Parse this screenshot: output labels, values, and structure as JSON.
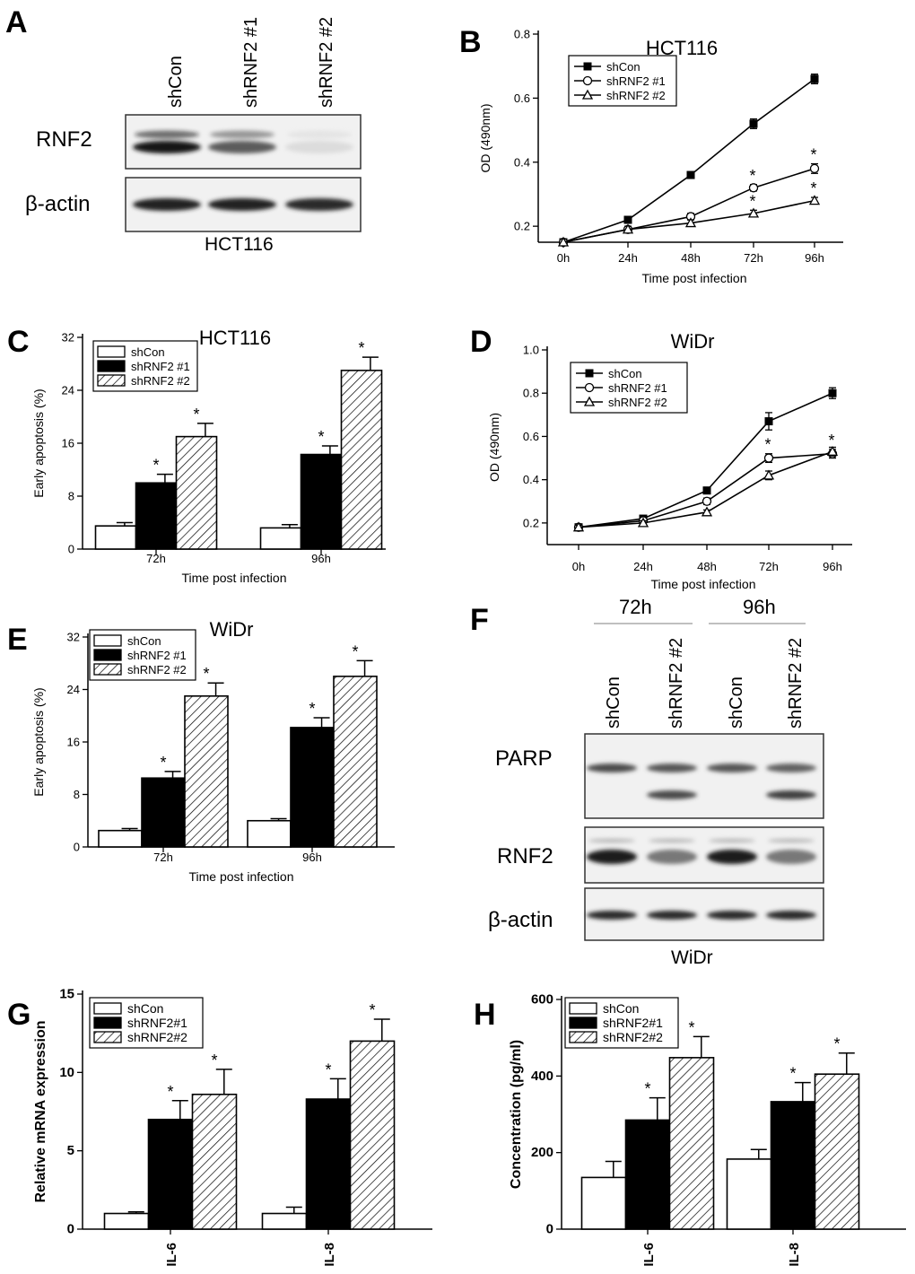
{
  "panels": {
    "A": {
      "label": "A",
      "lanes": [
        "shCon",
        "shRNF2 #1",
        "shRNF2 #2"
      ],
      "blots": [
        {
          "name": "RNF2",
          "intensity": [
            1.0,
            0.7,
            0.15
          ],
          "double": true
        },
        {
          "name": "β-actin",
          "intensity": [
            0.95,
            0.95,
            0.9
          ],
          "double": false
        }
      ],
      "caption": "HCT116"
    },
    "F": {
      "label": "F",
      "groups": [
        "72h",
        "96h"
      ],
      "lanes": [
        "shCon",
        "shRNF2 #2",
        "shCon",
        "shRNF2 #2"
      ],
      "blots": [
        {
          "name": "PARP",
          "intensity": [
            0.8,
            0.75,
            0.75,
            0.7
          ],
          "cleaved": [
            0,
            0.8,
            0,
            0.85
          ]
        },
        {
          "name": "RNF2",
          "intensity": [
            1.0,
            0.6,
            1.0,
            0.6
          ],
          "cleaved": [
            0,
            0,
            0,
            0
          ]
        },
        {
          "name": "β-actin",
          "intensity": [
            0.95,
            0.95,
            0.95,
            0.95
          ],
          "cleaved": [
            0,
            0,
            0,
            0
          ]
        }
      ],
      "caption": "WiDr"
    }
  },
  "chart_data": [
    {
      "id": "B",
      "panel_label": "B",
      "type": "line",
      "title": "HCT116",
      "xlabel": "Time post infection",
      "ylabel": "OD (490nm)",
      "x": [
        "0h",
        "24h",
        "48h",
        "72h",
        "96h"
      ],
      "ylim": [
        0.15,
        0.8
      ],
      "yticks": [
        0.2,
        0.4,
        0.6,
        0.8
      ],
      "ytick_labels": [
        "0.2",
        "0.4",
        "0.6",
        "0.8"
      ],
      "series": [
        {
          "name": "shCon",
          "marker": "square",
          "values": [
            0.15,
            0.22,
            0.36,
            0.52,
            0.66
          ],
          "err": [
            0.01,
            0.01,
            0.01,
            0.015,
            0.015
          ],
          "sig": [
            false,
            false,
            false,
            false,
            false
          ]
        },
        {
          "name": "shRNF2 #1",
          "marker": "circle",
          "values": [
            0.15,
            0.19,
            0.23,
            0.32,
            0.38
          ],
          "err": [
            0.01,
            0.01,
            0.01,
            0.01,
            0.015
          ],
          "sig": [
            false,
            false,
            false,
            true,
            true
          ]
        },
        {
          "name": "shRNF2 #2",
          "marker": "triangle",
          "values": [
            0.15,
            0.19,
            0.21,
            0.24,
            0.28
          ],
          "err": [
            0.01,
            0.01,
            0.01,
            0.01,
            0.01
          ],
          "sig": [
            false,
            false,
            false,
            true,
            true
          ]
        }
      ],
      "legend": "top-left"
    },
    {
      "id": "C",
      "panel_label": "C",
      "type": "bar",
      "title": "HCT116",
      "xlabel": "Time post infection",
      "ylabel": "Early apoptosis (%)",
      "categories": [
        "72h",
        "96h"
      ],
      "ylim": [
        0,
        32
      ],
      "yticks": [
        0,
        8,
        16,
        24,
        32
      ],
      "ytick_labels": [
        "0",
        "8",
        "16",
        "24",
        "32"
      ],
      "series": [
        {
          "name": "shCon",
          "fill": "white",
          "values": [
            3.5,
            3.2
          ],
          "err": [
            0.5,
            0.5
          ],
          "sig": [
            false,
            false
          ]
        },
        {
          "name": "shRNF2 #1",
          "fill": "black",
          "values": [
            10,
            14.3
          ],
          "err": [
            1.3,
            1.3
          ],
          "sig": [
            true,
            true
          ]
        },
        {
          "name": "shRNF2 #2",
          "fill": "hatch",
          "values": [
            17,
            27
          ],
          "err": [
            2,
            2
          ],
          "sig": [
            true,
            true
          ]
        }
      ],
      "legend": "top-left"
    },
    {
      "id": "D",
      "panel_label": "D",
      "type": "line",
      "title": "WiDr",
      "xlabel": "Time post infection",
      "ylabel": "OD (490nm)",
      "x": [
        "0h",
        "24h",
        "48h",
        "72h",
        "96h"
      ],
      "ylim": [
        0.1,
        1.0
      ],
      "yticks": [
        0.2,
        0.4,
        0.6,
        0.8,
        1.0
      ],
      "ytick_labels": [
        "0.2",
        "0.4",
        "0.6",
        "0.8",
        "1.0"
      ],
      "series": [
        {
          "name": "shCon",
          "marker": "square",
          "values": [
            0.18,
            0.22,
            0.35,
            0.67,
            0.8
          ],
          "err": [
            0.01,
            0.01,
            0.015,
            0.04,
            0.025
          ],
          "sig": [
            false,
            false,
            false,
            false,
            false
          ]
        },
        {
          "name": "shRNF2 #1",
          "marker": "circle",
          "values": [
            0.18,
            0.21,
            0.3,
            0.5,
            0.52
          ],
          "err": [
            0.01,
            0.01,
            0.015,
            0.02,
            0.02
          ],
          "sig": [
            false,
            false,
            false,
            true,
            true
          ]
        },
        {
          "name": "shRNF2 #2",
          "marker": "triangle",
          "values": [
            0.18,
            0.2,
            0.25,
            0.42,
            0.53
          ],
          "err": [
            0.01,
            0.01,
            0.01,
            0.02,
            0.02
          ],
          "sig": [
            false,
            false,
            false,
            false,
            false
          ]
        }
      ],
      "legend": "top-left"
    },
    {
      "id": "E",
      "panel_label": "E",
      "type": "bar",
      "title": "WiDr",
      "xlabel": "Time post infection",
      "ylabel": "Early apoptosis (%)",
      "categories": [
        "72h",
        "96h"
      ],
      "ylim": [
        0,
        32
      ],
      "yticks": [
        0,
        8,
        16,
        24,
        32
      ],
      "ytick_labels": [
        "0",
        "8",
        "16",
        "24",
        "32"
      ],
      "series": [
        {
          "name": "shCon",
          "fill": "white",
          "values": [
            2.5,
            4
          ],
          "err": [
            0.3,
            0.3
          ],
          "sig": [
            false,
            false
          ]
        },
        {
          "name": "shRNF2 #1",
          "fill": "black",
          "values": [
            10.5,
            18.2
          ],
          "err": [
            1,
            1.5
          ],
          "sig": [
            true,
            true
          ]
        },
        {
          "name": "shRNF2 #2",
          "fill": "hatch",
          "values": [
            23,
            26
          ],
          "err": [
            2,
            2.4
          ],
          "sig": [
            true,
            true
          ]
        }
      ],
      "legend": "top-left"
    },
    {
      "id": "G",
      "panel_label": "G",
      "type": "bar",
      "title": "",
      "xlabel": "",
      "ylabel": "Relative mRNA expression",
      "categories": [
        "IL-6",
        "IL-8"
      ],
      "ylim": [
        0,
        15
      ],
      "yticks": [
        0,
        5,
        10,
        15
      ],
      "ytick_labels": [
        "0",
        "5",
        "10",
        "15"
      ],
      "series": [
        {
          "name": "shCon",
          "fill": "white",
          "values": [
            1,
            1
          ],
          "err": [
            0.1,
            0.4
          ],
          "sig": [
            false,
            false
          ]
        },
        {
          "name": "shRNF2#1",
          "fill": "black",
          "values": [
            7,
            8.3
          ],
          "err": [
            1.2,
            1.3
          ],
          "sig": [
            true,
            true
          ]
        },
        {
          "name": "shRNF2#2",
          "fill": "hatch",
          "values": [
            8.6,
            12
          ],
          "err": [
            1.6,
            1.4
          ],
          "sig": [
            true,
            true
          ]
        }
      ],
      "legend": "top-left"
    },
    {
      "id": "H",
      "panel_label": "H",
      "type": "bar",
      "title": "",
      "xlabel": "",
      "ylabel": "Concentration (pg/ml)",
      "categories": [
        "IL-6",
        "IL-8"
      ],
      "ylim": [
        0,
        600
      ],
      "yticks": [
        0,
        200,
        400,
        600
      ],
      "ytick_labels": [
        "0",
        "200",
        "400",
        "600"
      ],
      "series": [
        {
          "name": "shCon",
          "fill": "white",
          "values": [
            135,
            183
          ],
          "err": [
            42,
            25
          ],
          "sig": [
            false,
            false
          ]
        },
        {
          "name": "shRNF2#1",
          "fill": "black",
          "values": [
            285,
            333
          ],
          "err": [
            58,
            50
          ],
          "sig": [
            true,
            true
          ]
        },
        {
          "name": "shRNF2#2",
          "fill": "hatch",
          "values": [
            448,
            405
          ],
          "err": [
            55,
            55
          ],
          "sig": [
            true,
            true
          ]
        }
      ],
      "legend": "top-left"
    }
  ],
  "significance_mark": "*"
}
